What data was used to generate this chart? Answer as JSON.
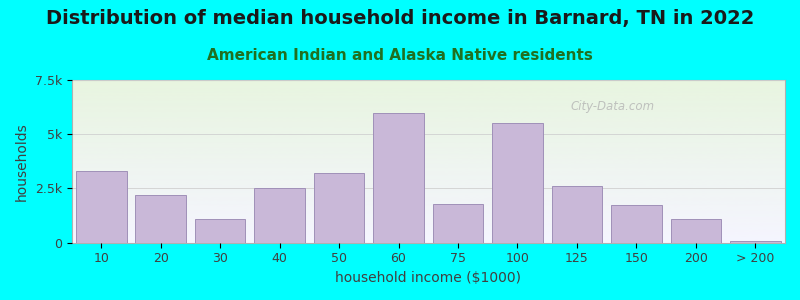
{
  "title": "Distribution of median household income in Barnard, TN in 2022",
  "subtitle": "American Indian and Alaska Native residents",
  "xlabel": "household income ($1000)",
  "ylabel": "households",
  "background_color": "#00FFFF",
  "bar_color": "#c9b8d8",
  "bar_edge_color": "#a090b8",
  "watermark": "City-Data.com",
  "categories": [
    "10",
    "20",
    "30",
    "40",
    "50",
    "60",
    "75",
    "100",
    "125",
    "150",
    "200",
    "> 200"
  ],
  "values": [
    3300,
    2200,
    1100,
    2500,
    3200,
    6000,
    1800,
    5500,
    2600,
    1750,
    1100,
    100
  ],
  "ylim": [
    0,
    7500
  ],
  "yticks": [
    0,
    2500,
    5000,
    7500
  ],
  "ytick_labels": [
    "0",
    "2.5k",
    "5k",
    "7.5k"
  ],
  "title_fontsize": 14,
  "subtitle_fontsize": 11,
  "axis_label_fontsize": 10,
  "tick_fontsize": 9
}
